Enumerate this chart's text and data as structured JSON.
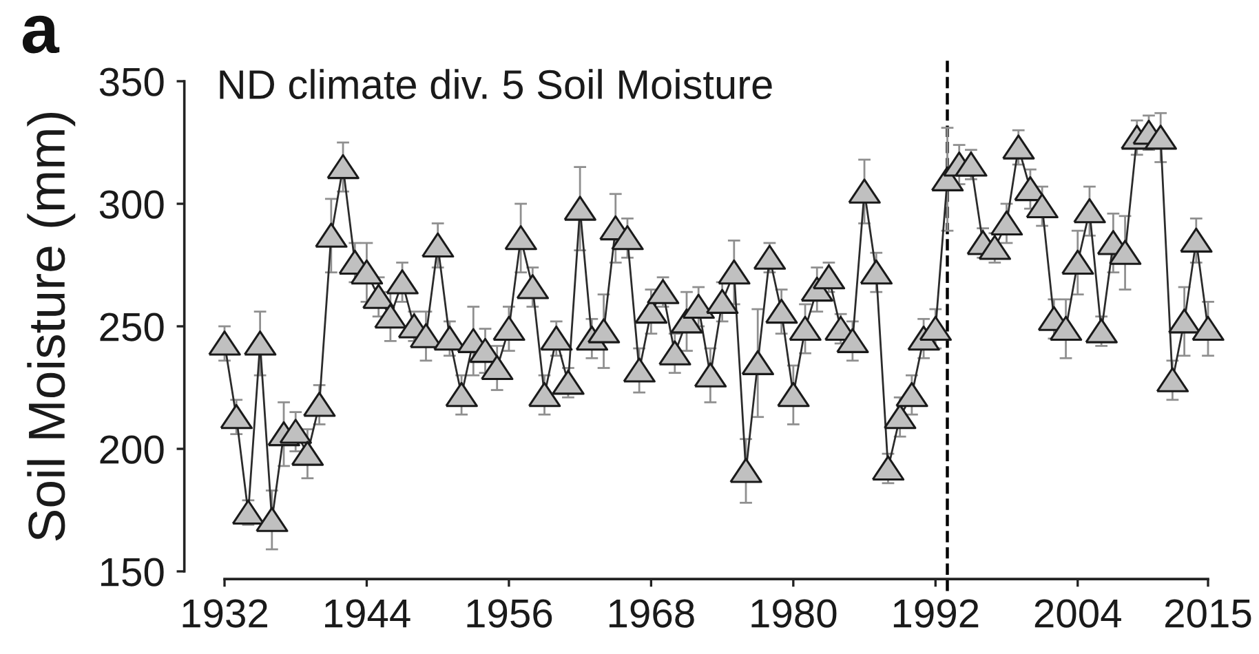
{
  "chart_data": {
    "type": "line",
    "title": "ND climate div. 5 Soil Moisture",
    "ylabel": "Soil Moisture (mm)",
    "annotations": [
      "a"
    ],
    "x": [
      1932,
      1933,
      1934,
      1935,
      1936,
      1937,
      1938,
      1939,
      1940,
      1941,
      1942,
      1943,
      1944,
      1945,
      1946,
      1947,
      1948,
      1949,
      1950,
      1951,
      1952,
      1953,
      1954,
      1955,
      1956,
      1957,
      1958,
      1959,
      1960,
      1961,
      1962,
      1963,
      1964,
      1965,
      1966,
      1967,
      1968,
      1969,
      1970,
      1971,
      1972,
      1973,
      1974,
      1975,
      1976,
      1977,
      1978,
      1979,
      1980,
      1981,
      1982,
      1983,
      1984,
      1985,
      1986,
      1987,
      1988,
      1989,
      1990,
      1991,
      1992,
      1993,
      1994,
      1995,
      1996,
      1997,
      1998,
      1999,
      2000,
      2001,
      2002,
      2003,
      2004,
      2005,
      2006,
      2007,
      2008,
      2009,
      2010,
      2011,
      2012,
      2013,
      2014,
      2015
    ],
    "series": [
      {
        "color": "#c0c0c0",
        "values": [
          243,
          213,
          174,
          243,
          171,
          206,
          207,
          198,
          218,
          287,
          315,
          276,
          272,
          262,
          254,
          268,
          250,
          246,
          283,
          245,
          222,
          244,
          240,
          233,
          249,
          286,
          266,
          222,
          245,
          227,
          298,
          245,
          248,
          290,
          286,
          232,
          256,
          264,
          239,
          252,
          258,
          230,
          260,
          272,
          191,
          235,
          278,
          256,
          222,
          249,
          265,
          270,
          249,
          244,
          305,
          272,
          192,
          213,
          222,
          245,
          249,
          310,
          316,
          316,
          284,
          282,
          292,
          323,
          306,
          299,
          253,
          249,
          276,
          297,
          248,
          284,
          280,
          327,
          329,
          327,
          228,
          252,
          285,
          249
        ],
        "errors": [
          7,
          7,
          5,
          13,
          12,
          13,
          8,
          10,
          8,
          15,
          10,
          8,
          12,
          8,
          10,
          8,
          6,
          10,
          9,
          7,
          8,
          14,
          9,
          9,
          9,
          14,
          8,
          8,
          7,
          6,
          17,
          8,
          15,
          14,
          8,
          9,
          9,
          6,
          8,
          12,
          8,
          11,
          8,
          13,
          13,
          22,
          6,
          9,
          12,
          10,
          9,
          6,
          6,
          8,
          13,
          8,
          6,
          8,
          8,
          8,
          8,
          21,
          8,
          6,
          6,
          6,
          8,
          7,
          8,
          8,
          8,
          12,
          13,
          10,
          6,
          12,
          15,
          7,
          7,
          10,
          8,
          14,
          9,
          11
        ]
      }
    ],
    "xlim": [
      1932,
      2015
    ],
    "ylim": [
      150,
      350
    ],
    "xticks": [
      1932,
      1944,
      1956,
      1968,
      1980,
      1992,
      2004,
      2015
    ],
    "yticks": [
      150,
      200,
      250,
      300,
      350
    ],
    "ref_lines": [
      {
        "axis": "x",
        "value": 1993,
        "line_style": "dashed",
        "color": "#000000"
      }
    ],
    "marker": "triangle",
    "line_style": "solid"
  }
}
